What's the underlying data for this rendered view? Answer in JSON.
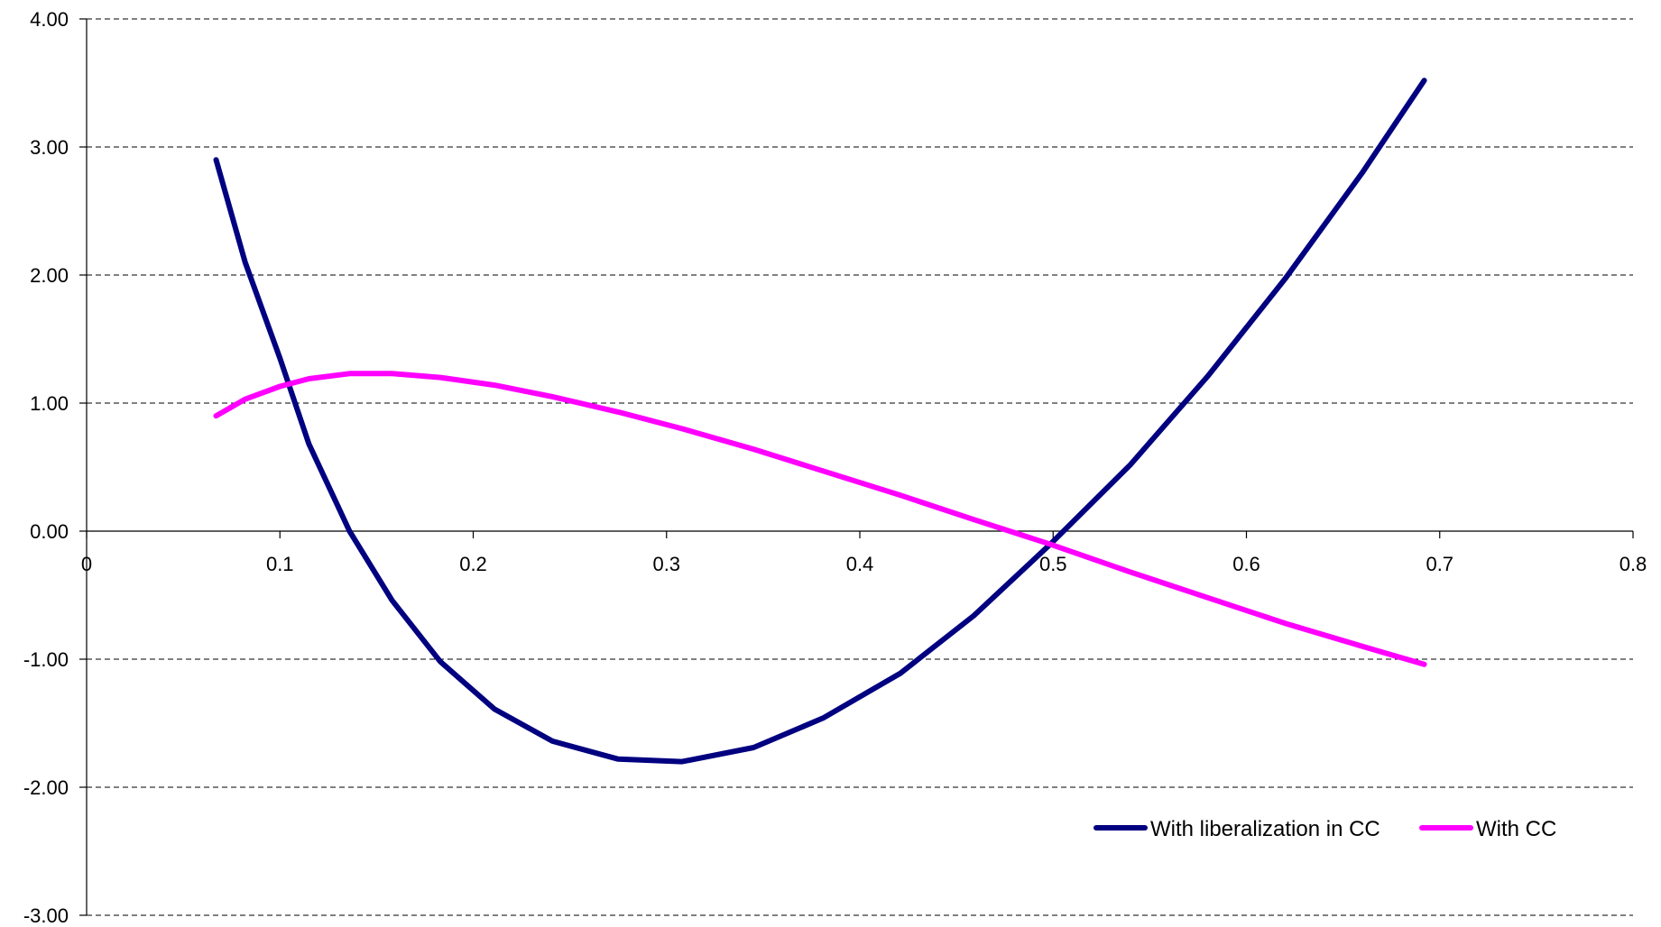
{
  "chart_data": {
    "type": "line",
    "title": "",
    "xlabel": "",
    "ylabel": "",
    "xlim": [
      0,
      0.8
    ],
    "ylim": [
      -3,
      4
    ],
    "x_ticks": [
      0,
      0.1,
      0.2,
      0.3,
      0.4,
      0.5,
      0.6,
      0.7,
      0.8
    ],
    "x_tick_labels": [
      "0",
      "0.1",
      "0.2",
      "0.3",
      "0.4",
      "0.5",
      "0.6",
      "0.7",
      "0.8"
    ],
    "y_ticks": [
      4,
      3,
      2,
      1,
      0,
      -1,
      -2,
      -3
    ],
    "y_tick_labels": [
      "4.00",
      "3.00",
      "2.00",
      "1.00",
      "0.00",
      "-1.00",
      "-2.00",
      "-3.00"
    ],
    "grid": "horizontal dashed",
    "legend_position": "bottom-right",
    "series": [
      {
        "name": "With liberalization in CC",
        "color": "#000080",
        "x": [
          0.067,
          0.082,
          0.1,
          0.115,
          0.136,
          0.158,
          0.183,
          0.211,
          0.241,
          0.275,
          0.308,
          0.345,
          0.381,
          0.421,
          0.459,
          0.498,
          0.54,
          0.58,
          0.62,
          0.66,
          0.692
        ],
        "y": [
          2.9,
          2.1,
          1.35,
          0.68,
          0.0,
          -0.54,
          -1.02,
          -1.39,
          -1.64,
          -1.78,
          -1.8,
          -1.69,
          -1.46,
          -1.11,
          -0.66,
          -0.11,
          0.52,
          1.21,
          1.97,
          2.8,
          3.52
        ]
      },
      {
        "name": "With CC",
        "color": "#FF00FF",
        "x": [
          0.067,
          0.082,
          0.1,
          0.115,
          0.136,
          0.158,
          0.183,
          0.211,
          0.241,
          0.275,
          0.308,
          0.345,
          0.381,
          0.421,
          0.459,
          0.498,
          0.54,
          0.58,
          0.62,
          0.66,
          0.692
        ],
        "y": [
          0.9,
          1.03,
          1.13,
          1.19,
          1.23,
          1.23,
          1.2,
          1.14,
          1.05,
          0.93,
          0.8,
          0.64,
          0.47,
          0.28,
          0.09,
          -0.1,
          -0.32,
          -0.52,
          -0.72,
          -0.9,
          -1.04
        ]
      }
    ]
  }
}
